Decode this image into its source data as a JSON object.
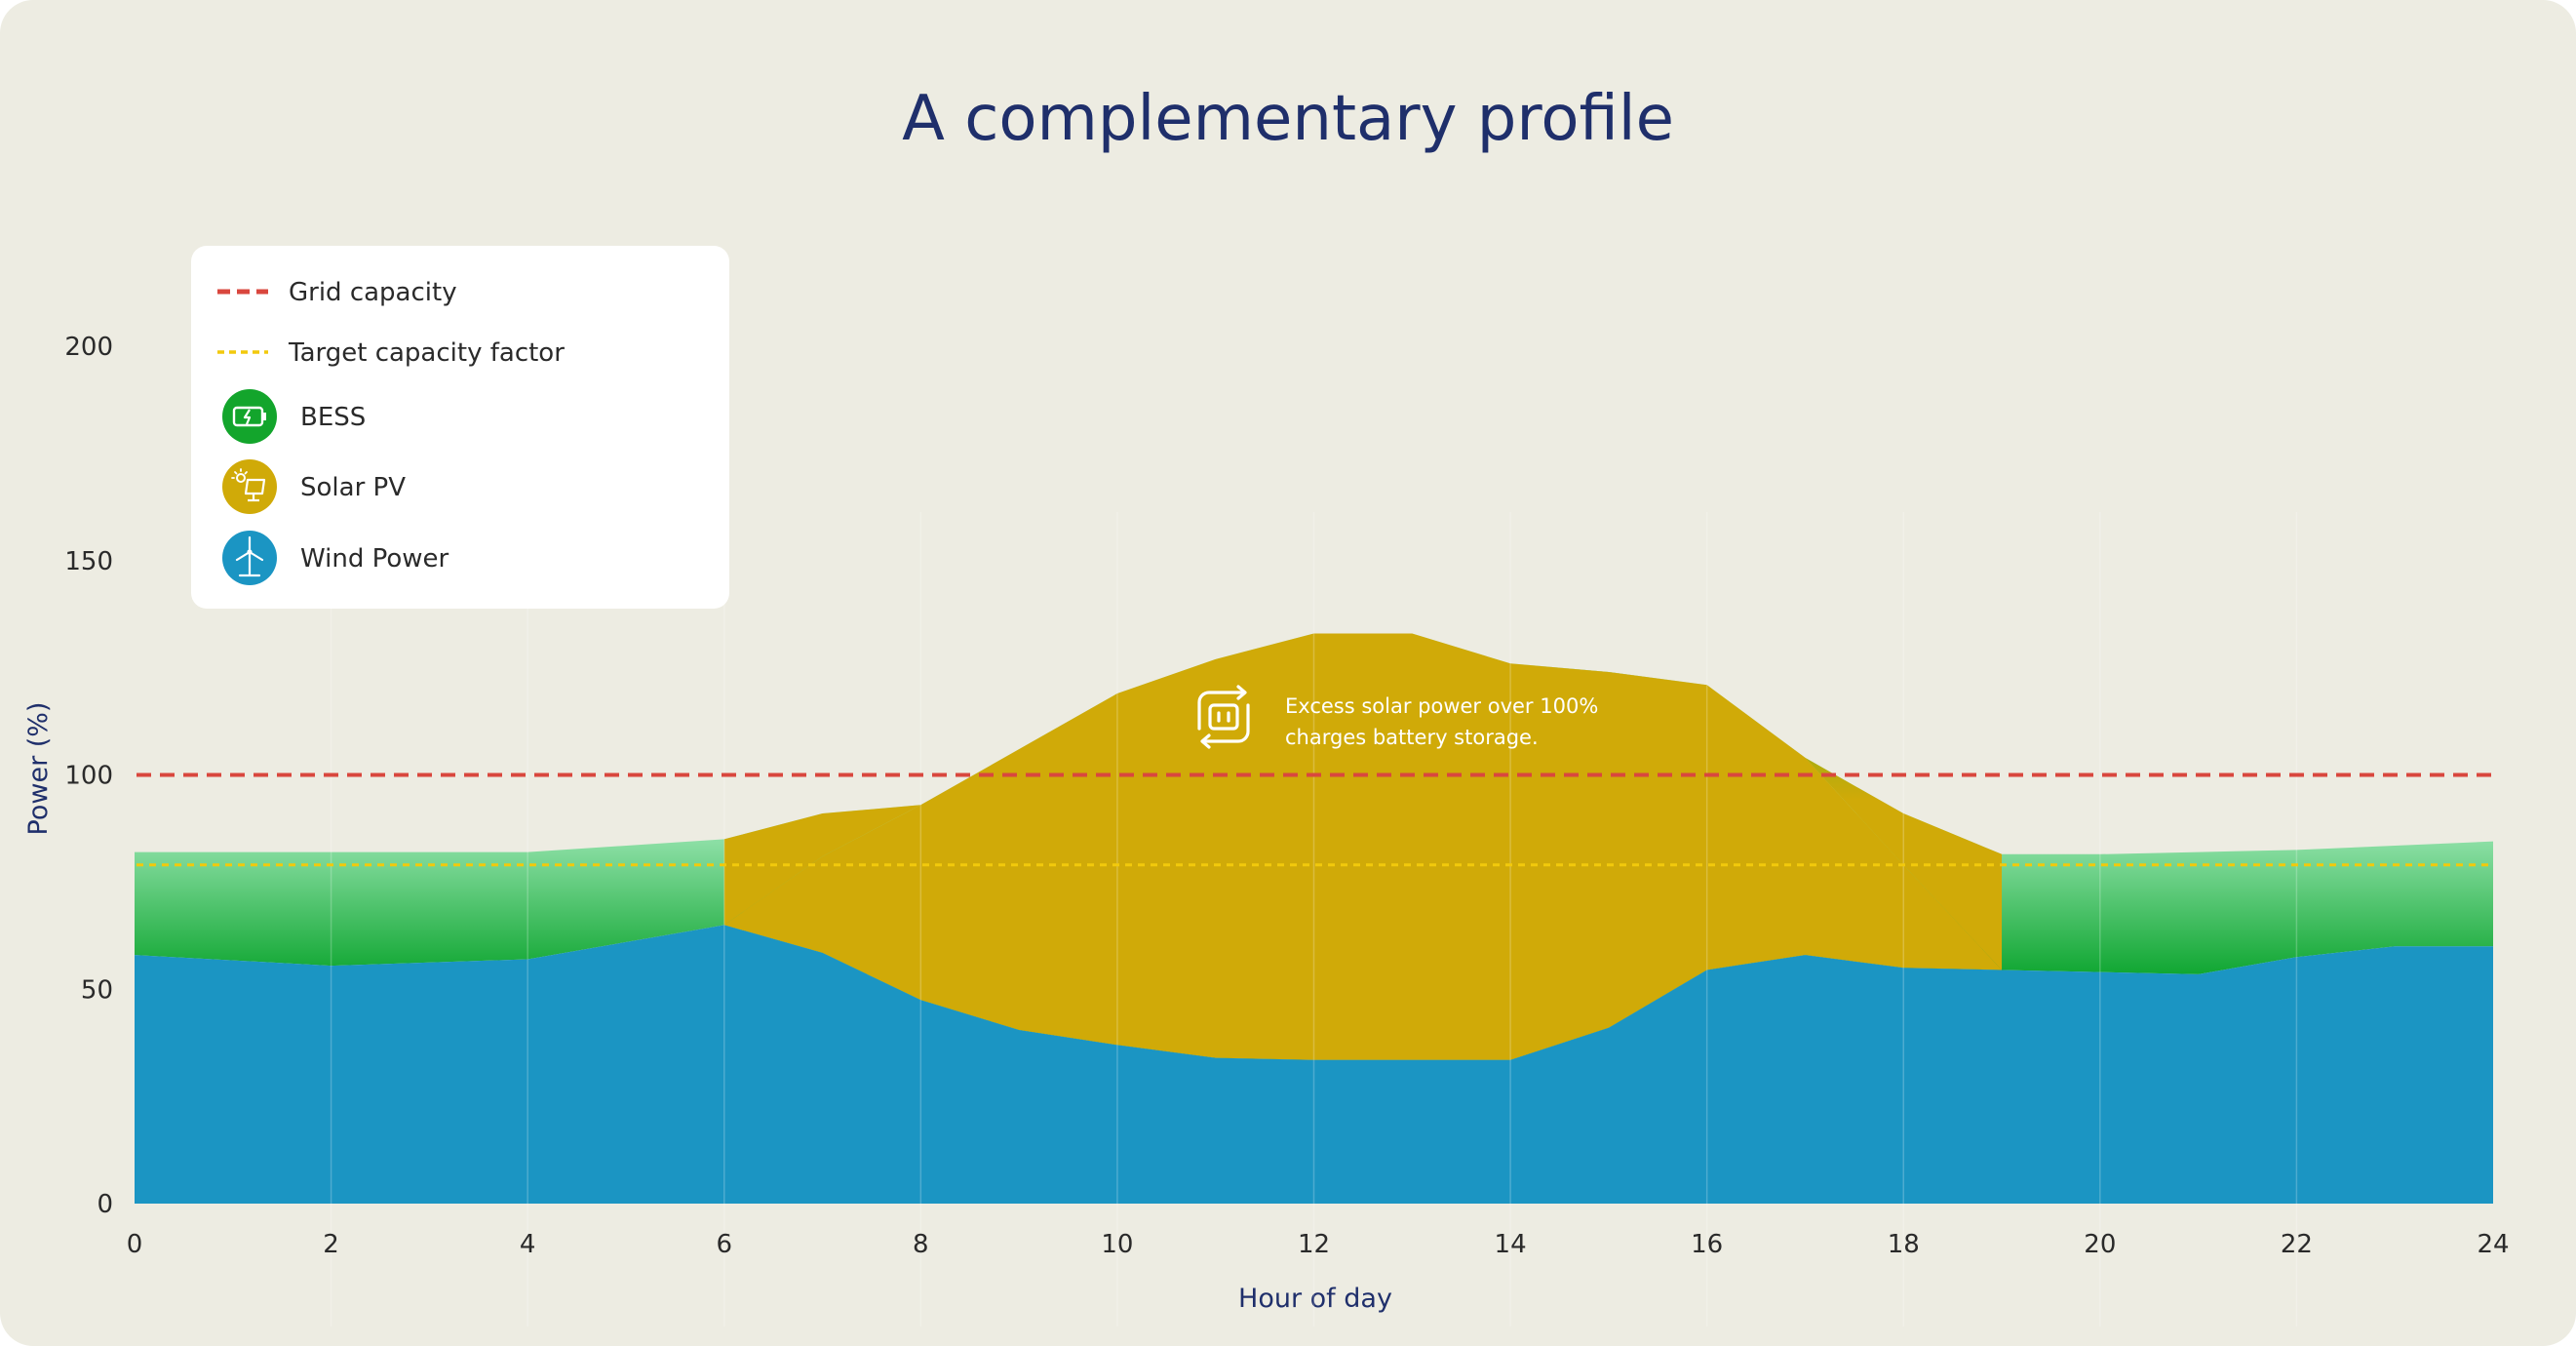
{
  "colors": {
    "background": "#edece2",
    "wind": "#1b95c3",
    "solar": "#d0aa08",
    "bess_bottom": "#0fa631",
    "bess_top": "#a9ecc0",
    "bess_peak": "#13a52c",
    "grid_line": "#d9473e",
    "target_line": "#f2c90c",
    "title": "#1f2f6b"
  },
  "chart_data": {
    "type": "area",
    "title": "A complementary profile",
    "xlabel": "Hour of day",
    "ylabel": "Power (%)",
    "xlim": [
      0,
      24
    ],
    "ylim": [
      0,
      200
    ],
    "x_ticks": [
      "0",
      "2",
      "4",
      "6",
      "8",
      "10",
      "12",
      "14",
      "16",
      "18",
      "20",
      "22",
      "24"
    ],
    "y_ticks": [
      "0",
      "50",
      "100",
      "150",
      "200"
    ],
    "stacked": true,
    "grid": "vertical",
    "legend_position": "top-left",
    "reference_lines": [
      {
        "name": "Grid capacity",
        "y": 100,
        "style": "dashed",
        "color": "#d9473e"
      },
      {
        "name": "Target capacity factor",
        "y": 79,
        "style": "dotted",
        "color": "#f2c90c"
      }
    ],
    "series": [
      {
        "name": "Wind Power",
        "icon": "wind-turbine-icon",
        "color": "#1b95c3",
        "x": [
          0,
          2,
          4,
          6,
          7,
          8,
          9,
          10,
          11,
          12,
          13,
          14,
          15,
          16,
          17,
          18,
          19,
          20,
          21,
          22,
          23,
          24
        ],
        "top": [
          58,
          55.5,
          57,
          65,
          58.5,
          47.5,
          40.5,
          37,
          34,
          33.5,
          33.5,
          33.5,
          41,
          54.5,
          58,
          55,
          54.5,
          54,
          53.5,
          57.5,
          60,
          60
        ]
      },
      {
        "name": "Solar PV",
        "icon": "solar-panel-icon",
        "color": "#d0aa08",
        "x": [
          6,
          7,
          8,
          9,
          10,
          11,
          12,
          13,
          14,
          15,
          16,
          17,
          18,
          19
        ],
        "top": [
          65,
          81,
          93,
          106,
          119,
          127,
          133,
          133,
          126,
          124,
          121,
          104,
          79,
          54.5
        ]
      },
      {
        "name": "BESS",
        "icon": "battery-icon",
        "color": "#0fa631",
        "x": [
          0,
          2,
          4,
          6,
          7,
          8,
          9,
          10,
          11,
          12,
          13,
          14,
          15,
          16,
          17,
          18,
          19,
          20,
          21,
          22,
          23,
          24
        ],
        "top": [
          82,
          82,
          82,
          85,
          91,
          93,
          106,
          119,
          127,
          133,
          133,
          126,
          124,
          121,
          104,
          91,
          81.5,
          81.5,
          82,
          82.5,
          83.5,
          84.5
        ]
      }
    ],
    "annotation": {
      "line1": "Excess solar power over 100%",
      "line2": "charges battery storage.",
      "icon": "battery-charge-cycle-icon"
    }
  }
}
